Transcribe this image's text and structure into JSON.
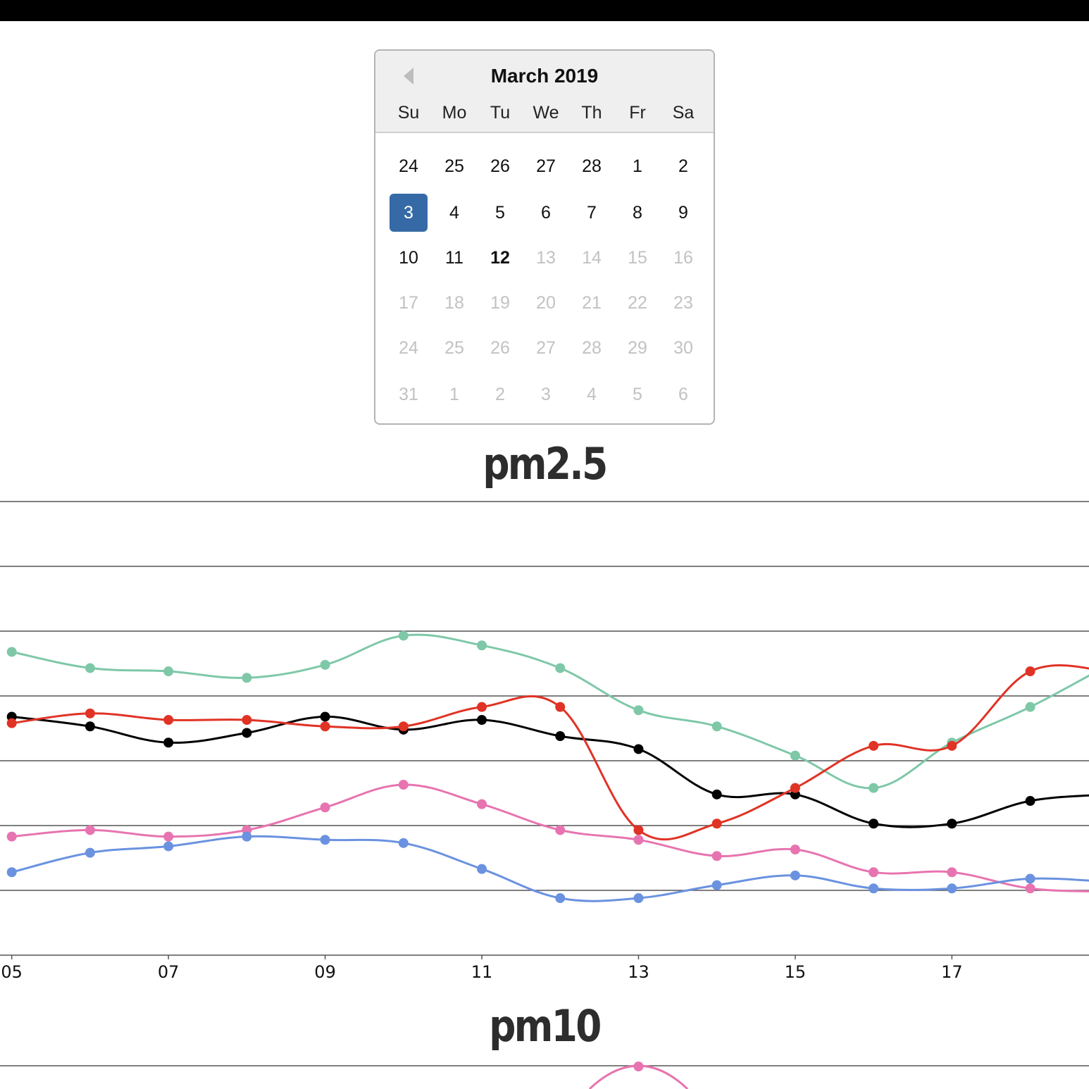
{
  "datepicker": {
    "month_label": "March 2019",
    "prev_icon": "triangle-left-icon",
    "weekdays": [
      "Su",
      "Mo",
      "Tu",
      "We",
      "Th",
      "Fr",
      "Sa"
    ],
    "weeks": [
      [
        {
          "d": "24",
          "m": false
        },
        {
          "d": "25",
          "m": false
        },
        {
          "d": "26",
          "m": false
        },
        {
          "d": "27",
          "m": false
        },
        {
          "d": "28",
          "m": false
        },
        {
          "d": "1",
          "m": false
        },
        {
          "d": "2",
          "m": false
        }
      ],
      [
        {
          "d": "3",
          "m": false,
          "selected": true
        },
        {
          "d": "4",
          "m": false
        },
        {
          "d": "5",
          "m": false
        },
        {
          "d": "6",
          "m": false
        },
        {
          "d": "7",
          "m": false
        },
        {
          "d": "8",
          "m": false
        },
        {
          "d": "9",
          "m": false
        }
      ],
      [
        {
          "d": "10",
          "m": false
        },
        {
          "d": "11",
          "m": false
        },
        {
          "d": "12",
          "m": false,
          "today": true
        },
        {
          "d": "13",
          "m": true
        },
        {
          "d": "14",
          "m": true
        },
        {
          "d": "15",
          "m": true
        },
        {
          "d": "16",
          "m": true
        }
      ],
      [
        {
          "d": "17",
          "m": true
        },
        {
          "d": "18",
          "m": true
        },
        {
          "d": "19",
          "m": true
        },
        {
          "d": "20",
          "m": true
        },
        {
          "d": "21",
          "m": true
        },
        {
          "d": "22",
          "m": true
        },
        {
          "d": "23",
          "m": true
        }
      ],
      [
        {
          "d": "24",
          "m": true
        },
        {
          "d": "25",
          "m": true
        },
        {
          "d": "26",
          "m": true
        },
        {
          "d": "27",
          "m": true
        },
        {
          "d": "28",
          "m": true
        },
        {
          "d": "29",
          "m": true
        },
        {
          "d": "30",
          "m": true
        }
      ],
      [
        {
          "d": "31",
          "m": true
        },
        {
          "d": "1",
          "m": true
        },
        {
          "d": "2",
          "m": true
        },
        {
          "d": "3",
          "m": true
        },
        {
          "d": "4",
          "m": true
        },
        {
          "d": "5",
          "m": true
        },
        {
          "d": "6",
          "m": true
        }
      ]
    ]
  },
  "chart_titles": {
    "pm25": "pm2.5",
    "pm10": "pm10"
  },
  "chart_data": [
    {
      "type": "line",
      "title": "pm2.5",
      "x": [
        5,
        6,
        7,
        8,
        9,
        10,
        11,
        12,
        13,
        14,
        15,
        16,
        17,
        18,
        19
      ],
      "tick_labels": [
        "05",
        "07",
        "09",
        "11",
        "13",
        "15",
        "17"
      ],
      "tick_values": [
        5,
        7,
        9,
        11,
        13,
        15,
        17
      ],
      "xlim": [
        4.85,
        18.75
      ],
      "ylim": [
        0,
        7
      ],
      "gridlines": 7,
      "grid": true,
      "series": [
        {
          "color": "#7ec8a8",
          "values": [
            4.68,
            4.43,
            4.38,
            4.28,
            4.48,
            4.93,
            4.78,
            4.43,
            3.78,
            3.53,
            3.08,
            2.58,
            3.28,
            3.83,
            4.48
          ]
        },
        {
          "color": "#000000",
          "values": [
            3.68,
            3.53,
            3.28,
            3.43,
            3.68,
            3.48,
            3.63,
            3.38,
            3.18,
            2.48,
            2.48,
            2.03,
            2.03,
            2.38,
            2.48
          ]
        },
        {
          "color": "#e03325",
          "values": [
            3.58,
            3.73,
            3.63,
            3.63,
            3.53,
            3.53,
            3.83,
            3.83,
            1.93,
            2.03,
            2.58,
            3.23,
            3.23,
            4.38,
            4.38
          ]
        },
        {
          "color": "#e774b0",
          "values": [
            1.83,
            1.93,
            1.83,
            1.93,
            2.28,
            2.63,
            2.33,
            1.93,
            1.78,
            1.53,
            1.63,
            1.28,
            1.28,
            1.03,
            0.98
          ]
        },
        {
          "color": "#6a92e0",
          "values": [
            1.28,
            1.58,
            1.68,
            1.83,
            1.78,
            1.73,
            1.33,
            0.88,
            0.88,
            1.08,
            1.23,
            1.03,
            1.03,
            1.18,
            1.13
          ]
        }
      ]
    },
    {
      "type": "line",
      "title": "pm10",
      "x": [
        12.5,
        13,
        13.5
      ],
      "xlim": [
        4.85,
        18.75
      ],
      "ylim": [
        0,
        1
      ],
      "series": [
        {
          "color": "#e774b0",
          "values": [
            0.0,
            0.6,
            0.0
          ]
        }
      ]
    }
  ]
}
